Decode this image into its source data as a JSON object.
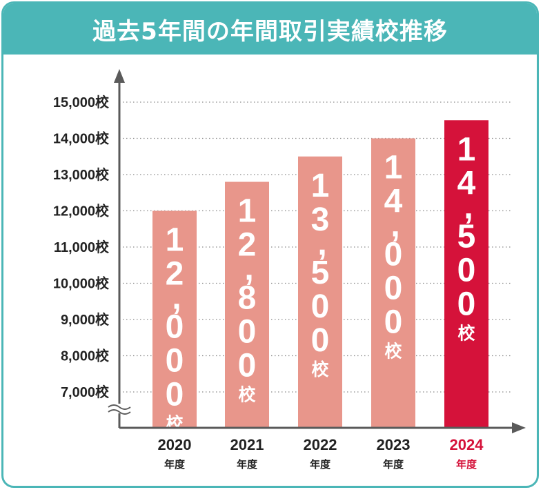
{
  "chart_data": {
    "type": "bar",
    "title": "過去5年間の年間取引実績校推移",
    "categories": [
      "2020",
      "2021",
      "2022",
      "2023",
      "2024"
    ],
    "category_suffix": "年度",
    "values": [
      12000,
      12800,
      13500,
      14000,
      14500
    ],
    "value_labels": [
      "12,000",
      "12,800",
      "13,500",
      "14,000",
      "14,500"
    ],
    "unit": "校",
    "y_ticks": [
      "7,000校",
      "8,000校",
      "9,000校",
      "10,000校",
      "11,000校",
      "12,000校",
      "13,000校",
      "14,000校",
      "15,000校"
    ],
    "ylim": [
      6000,
      15000
    ],
    "axis_break": true,
    "grid": true,
    "highlight_index": 4,
    "xlabel": "",
    "ylabel": ""
  },
  "colors": {
    "frame": "#4bb6b7",
    "bar": "#e8968b",
    "highlight_bar": "#d5123a",
    "highlight_text": "#d5123a",
    "axis": "#5a5a5a",
    "grid": "#8a8a8a",
    "text": "#222222"
  }
}
